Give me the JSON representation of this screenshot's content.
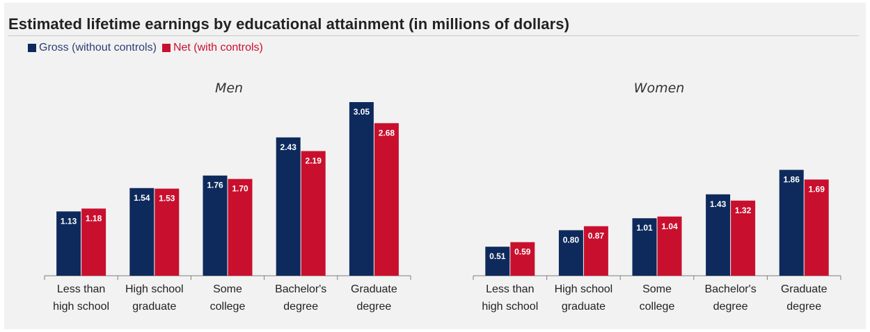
{
  "title": "Estimated lifetime earnings by educational attainment (in millions of dollars)",
  "legend": [
    {
      "label": "Gross (without controls)",
      "color": "#0e2a5c"
    },
    {
      "label": "Net (with controls)",
      "color": "#c8102e"
    }
  ],
  "chart_data": [
    {
      "type": "bar",
      "title": "Men",
      "categories": [
        [
          "Less than",
          "high school"
        ],
        [
          "High school",
          "graduate"
        ],
        [
          "Some",
          "college"
        ],
        [
          "Bachelor's",
          "degree"
        ],
        [
          "Graduate",
          "degree"
        ]
      ],
      "series": [
        {
          "name": "Gross (without controls)",
          "values": [
            1.13,
            1.54,
            1.76,
            2.43,
            3.05
          ]
        },
        {
          "name": "Net (with controls)",
          "values": [
            1.18,
            1.53,
            1.7,
            2.19,
            2.68
          ]
        }
      ],
      "value_labels": [
        [
          "1.13",
          "1.54",
          "1.76",
          "2.43",
          "3.05"
        ],
        [
          "1.18",
          "1.53",
          "1.70",
          "2.19",
          "2.68"
        ]
      ],
      "ylim": [
        0,
        3.05
      ],
      "grid": false
    },
    {
      "type": "bar",
      "title": "Women",
      "categories": [
        [
          "Less than",
          "high school"
        ],
        [
          "High school",
          "graduate"
        ],
        [
          "Some",
          "college"
        ],
        [
          "Bachelor's",
          "degree"
        ],
        [
          "Graduate",
          "degree"
        ]
      ],
      "series": [
        {
          "name": "Gross (without controls)",
          "values": [
            0.51,
            0.8,
            1.01,
            1.43,
            1.86
          ]
        },
        {
          "name": "Net (with controls)",
          "values": [
            0.59,
            0.87,
            1.04,
            1.32,
            1.69
          ]
        }
      ],
      "value_labels": [
        [
          "0.51",
          "0.80",
          "1.01",
          "1.43",
          "1.86"
        ],
        [
          "0.59",
          "0.87",
          "1.04",
          "1.32",
          "1.69"
        ]
      ],
      "ylim": [
        0,
        3.05
      ],
      "grid": false
    }
  ]
}
